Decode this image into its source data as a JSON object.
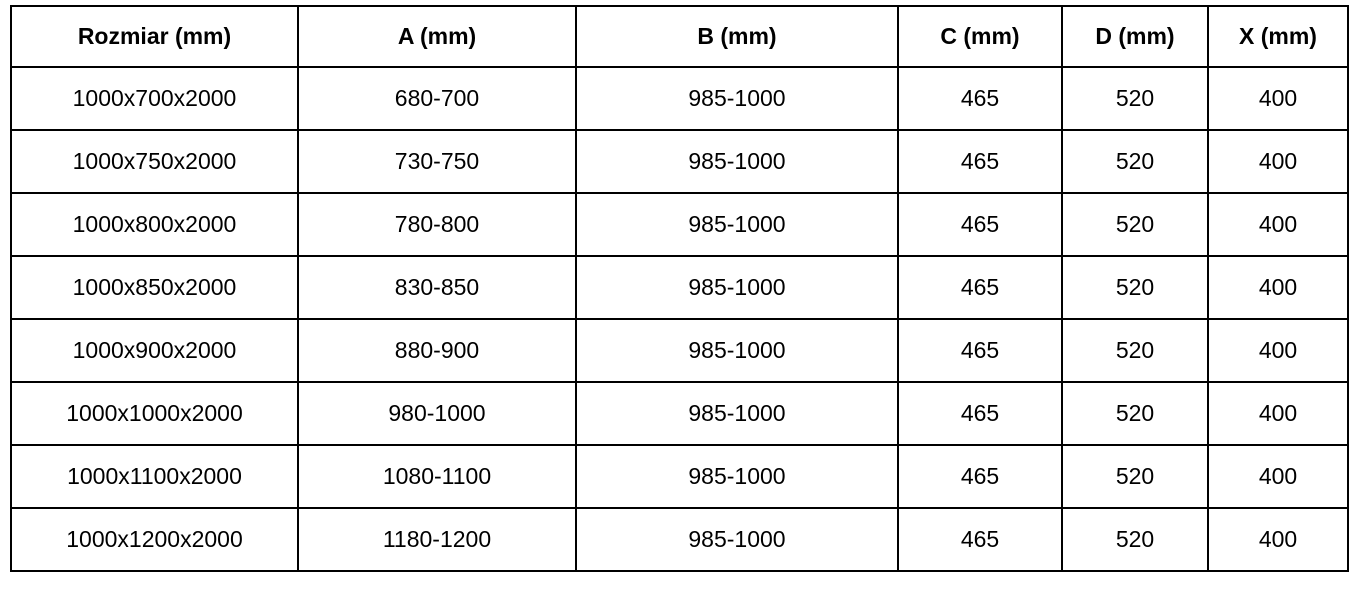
{
  "table": {
    "columns": [
      "Rozmiar (mm)",
      "A (mm)",
      "B (mm)",
      "C (mm)",
      "D (mm)",
      "X (mm)"
    ],
    "rows": [
      [
        "1000x700x2000",
        "680-700",
        "985-1000",
        "465",
        "520",
        "400"
      ],
      [
        "1000x750x2000",
        "730-750",
        "985-1000",
        "465",
        "520",
        "400"
      ],
      [
        "1000x800x2000",
        "780-800",
        "985-1000",
        "465",
        "520",
        "400"
      ],
      [
        "1000x850x2000",
        "830-850",
        "985-1000",
        "465",
        "520",
        "400"
      ],
      [
        "1000x900x2000",
        "880-900",
        "985-1000",
        "465",
        "520",
        "400"
      ],
      [
        "1000x1000x2000",
        "980-1000",
        "985-1000",
        "465",
        "520",
        "400"
      ],
      [
        "1000x1100x2000",
        "1080-1100",
        "985-1000",
        "465",
        "520",
        "400"
      ],
      [
        "1000x1200x2000",
        "1180-1200",
        "985-1000",
        "465",
        "520",
        "400"
      ]
    ],
    "colors": {
      "border": "#000000",
      "background": "#ffffff",
      "text": "#000000"
    }
  }
}
